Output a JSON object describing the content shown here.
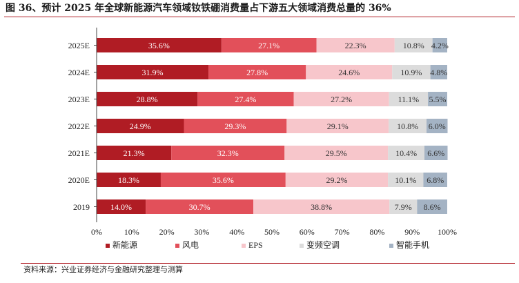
{
  "header": {
    "title": "图 36、预计 2025 年全球新能源汽车领域钕铁硼消费量占下游五大领域消费总量的 36%"
  },
  "footer": {
    "source": "资料来源：兴业证券经济与金融研究整理与测算"
  },
  "chart_data": {
    "type": "bar",
    "orientation": "horizontal",
    "stacked": "percent",
    "title": "",
    "xlabel": "",
    "ylabel": "",
    "categories": [
      "2025E",
      "2024E",
      "2023E",
      "2022E",
      "2021E",
      "2020E",
      "2019"
    ],
    "x_ticks": [
      "0%",
      "10%",
      "20%",
      "30%",
      "40%",
      "50%",
      "60%",
      "70%",
      "80%",
      "90%",
      "100%"
    ],
    "xlim": [
      0,
      100
    ],
    "grid": false,
    "legend_position": "bottom",
    "series": [
      {
        "name": "新能源",
        "color": "#b01c24",
        "values": [
          35.6,
          31.9,
          28.8,
          24.9,
          21.3,
          18.3,
          14.0
        ],
        "labels": [
          "35.6%",
          "31.9%",
          "28.8%",
          "24.9%",
          "21.3%",
          "18.3%",
          "14.0%"
        ]
      },
      {
        "name": "风电",
        "color": "#e2505a",
        "values": [
          27.1,
          27.8,
          27.4,
          29.3,
          32.3,
          35.6,
          30.7
        ],
        "labels": [
          "27.1%",
          "27.8%",
          "27.4%",
          "29.3%",
          "32.3%",
          "35.6%",
          "30.7%"
        ]
      },
      {
        "name": "EPS",
        "color": "#f7c6cb",
        "values": [
          22.3,
          24.6,
          27.2,
          29.1,
          29.5,
          29.2,
          38.8
        ],
        "labels": [
          "22.3%",
          "24.6%",
          "27.2%",
          "29.1%",
          "29.5%",
          "29.2%",
          "38.8%"
        ]
      },
      {
        "name": "变频空调",
        "color": "#dcdcdc",
        "values": [
          10.8,
          10.9,
          11.1,
          10.8,
          10.4,
          10.1,
          7.9
        ],
        "labels": [
          "10.8%",
          "10.9%",
          "11.1%",
          "10.8%",
          "10.4%",
          "10.1%",
          "7.9%"
        ]
      },
      {
        "name": "智能手机",
        "color": "#a4b3c4",
        "values": [
          4.2,
          4.8,
          5.5,
          6.0,
          6.6,
          6.8,
          8.6
        ],
        "labels": [
          "4.2%",
          "4.8%",
          "5.5%",
          "6.0%",
          "6.6%",
          "6.8%",
          "8.6%"
        ]
      }
    ]
  }
}
